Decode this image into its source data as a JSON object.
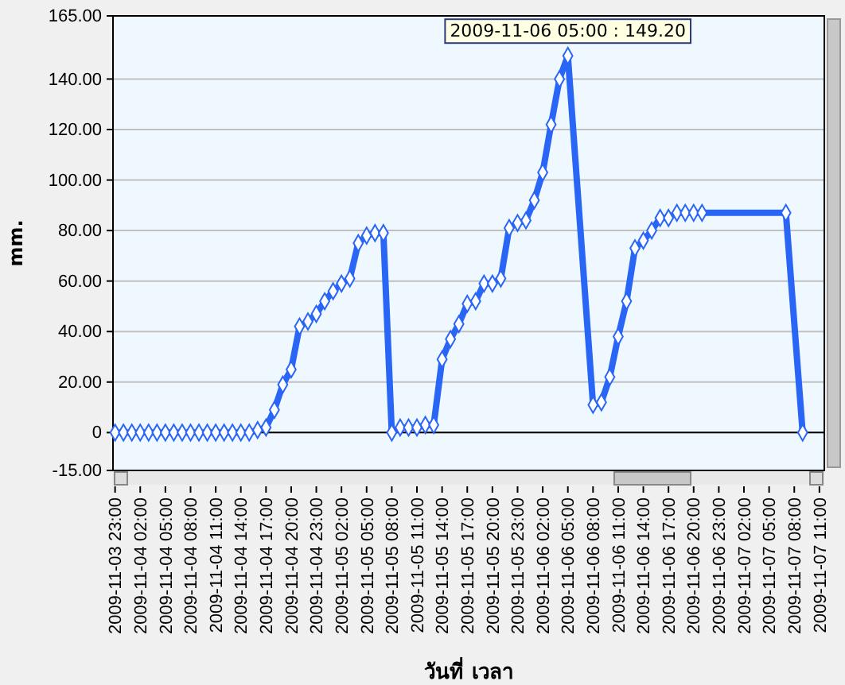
{
  "chart_data": {
    "type": "line",
    "xlabel": "วันที่ เวลา",
    "ylabel": "mm.",
    "marker": "diamond",
    "line_style": "solid",
    "grid": "y",
    "annotations": [
      {
        "text": "2009-11-06 05:00 : 149.20",
        "x": "2009-11-06T05:00",
        "y": 149.2
      }
    ],
    "xlim": [
      "2009-11-03T22:45",
      "2009-11-07T11:35"
    ],
    "ylim": [
      -15,
      165
    ],
    "yticks": [
      {
        "value": -15,
        "label": "-15.00"
      },
      0,
      {
        "value": 20,
        "label": "20.00"
      },
      {
        "value": 40,
        "label": "40.00"
      },
      {
        "value": 60,
        "label": "60.00"
      },
      {
        "value": 80,
        "label": "80.00"
      },
      {
        "value": 100,
        "label": "100.00"
      },
      {
        "value": 120,
        "label": "120.00"
      },
      {
        "value": 140,
        "label": "140.00"
      },
      {
        "value": 165,
        "label": "165.00"
      }
    ],
    "xticks": [
      {
        "value": "2009-11-03T23:00",
        "label": "2009-11-03 23:00"
      },
      {
        "value": "2009-11-04T02:00",
        "label": "2009-11-04 02:00"
      },
      {
        "value": "2009-11-04T05:00",
        "label": "2009-11-04 05:00"
      },
      {
        "value": "2009-11-04T08:00",
        "label": "2009-11-04 08:00"
      },
      {
        "value": "2009-11-04T11:00",
        "label": "2009-11-04 11:00"
      },
      {
        "value": "2009-11-04T14:00",
        "label": "2009-11-04 14:00"
      },
      {
        "value": "2009-11-04T17:00",
        "label": "2009-11-04 17:00"
      },
      {
        "value": "2009-11-04T20:00",
        "label": "2009-11-04 20:00"
      },
      {
        "value": "2009-11-04T23:00",
        "label": "2009-11-04 23:00"
      },
      {
        "value": "2009-11-05T02:00",
        "label": "2009-11-05 02:00"
      },
      {
        "value": "2009-11-05T05:00",
        "label": "2009-11-05 05:00"
      },
      {
        "value": "2009-11-05T08:00",
        "label": "2009-11-05 08:00"
      },
      {
        "value": "2009-11-05T11:00",
        "label": "2009-11-05 11:00"
      },
      {
        "value": "2009-11-05T14:00",
        "label": "2009-11-05 14:00"
      },
      {
        "value": "2009-11-05T17:00",
        "label": "2009-11-05 17:00"
      },
      {
        "value": "2009-11-05T20:00",
        "label": "2009-11-05 20:00"
      },
      {
        "value": "2009-11-05T23:00",
        "label": "2009-11-05 23:00"
      },
      {
        "value": "2009-11-06T02:00",
        "label": "2009-11-06 02:00"
      },
      {
        "value": "2009-11-06T05:00",
        "label": "2009-11-06 05:00"
      },
      {
        "value": "2009-11-06T08:00",
        "label": "2009-11-06 08:00"
      },
      {
        "value": "2009-11-06T11:00",
        "label": "2009-11-06 11:00"
      },
      {
        "value": "2009-11-06T14:00",
        "label": "2009-11-06 14:00"
      },
      {
        "value": "2009-11-06T17:00",
        "label": "2009-11-06 17:00"
      },
      {
        "value": "2009-11-06T20:00",
        "label": "2009-11-06 20:00"
      },
      {
        "value": "2009-11-06T23:00",
        "label": "2009-11-06 23:00"
      },
      {
        "value": "2009-11-07T02:00",
        "label": "2009-11-07 02:00"
      },
      {
        "value": "2009-11-07T05:00",
        "label": "2009-11-07 05:00"
      },
      {
        "value": "2009-11-07T08:00",
        "label": "2009-11-07 08:00"
      },
      {
        "value": "2009-11-07T11:00",
        "label": "2009-11-07 11:00"
      }
    ],
    "ref_lines": [
      {
        "axis": "y",
        "value": 0,
        "color": "#000000"
      }
    ],
    "series": [
      {
        "color": "#2a66f6",
        "x": [
          "2009-11-03T23:00",
          "2009-11-04T00:00",
          "2009-11-04T01:00",
          "2009-11-04T02:00",
          "2009-11-04T03:00",
          "2009-11-04T04:00",
          "2009-11-04T05:00",
          "2009-11-04T06:00",
          "2009-11-04T07:00",
          "2009-11-04T08:00",
          "2009-11-04T09:00",
          "2009-11-04T10:00",
          "2009-11-04T11:00",
          "2009-11-04T12:00",
          "2009-11-04T13:00",
          "2009-11-04T14:00",
          "2009-11-04T15:00",
          "2009-11-04T16:00",
          "2009-11-04T17:00",
          "2009-11-04T18:00",
          "2009-11-04T19:00",
          "2009-11-04T20:00",
          "2009-11-04T21:00",
          "2009-11-04T22:00",
          "2009-11-04T23:00",
          "2009-11-05T00:00",
          "2009-11-05T01:00",
          "2009-11-05T02:00",
          "2009-11-05T03:00",
          "2009-11-05T04:00",
          "2009-11-05T05:00",
          "2009-11-05T06:00",
          "2009-11-05T07:00",
          "2009-11-05T08:00",
          "2009-11-05T09:00",
          "2009-11-05T10:00",
          "2009-11-05T11:00",
          "2009-11-05T12:00",
          "2009-11-05T13:00",
          "2009-11-05T14:00",
          "2009-11-05T15:00",
          "2009-11-05T16:00",
          "2009-11-05T17:00",
          "2009-11-05T18:00",
          "2009-11-05T19:00",
          "2009-11-05T20:00",
          "2009-11-05T21:00",
          "2009-11-05T22:00",
          "2009-11-05T23:00",
          "2009-11-06T00:00",
          "2009-11-06T01:00",
          "2009-11-06T02:00",
          "2009-11-06T03:00",
          "2009-11-06T04:00",
          "2009-11-06T05:00",
          "2009-11-06T08:00",
          "2009-11-06T09:00",
          "2009-11-06T10:00",
          "2009-11-06T11:00",
          "2009-11-06T12:00",
          "2009-11-06T13:00",
          "2009-11-06T14:00",
          "2009-11-06T15:00",
          "2009-11-06T16:00",
          "2009-11-06T17:00",
          "2009-11-06T18:00",
          "2009-11-06T19:00",
          "2009-11-06T20:00",
          "2009-11-06T21:00",
          "2009-11-07T07:00",
          "2009-11-07T09:00"
        ],
        "values": [
          0,
          0,
          0,
          0,
          0,
          0,
          0,
          0,
          0,
          0,
          0,
          0,
          0,
          0,
          0,
          0,
          0,
          1,
          2,
          9,
          19,
          25,
          42,
          44,
          47,
          52,
          56,
          59,
          61,
          75,
          78,
          79,
          79,
          0,
          2,
          2,
          2,
          3,
          3,
          29,
          37,
          43,
          51,
          52,
          59,
          59,
          61,
          81,
          83,
          84,
          92,
          103,
          122,
          140,
          149.2,
          11,
          12,
          22,
          38,
          52,
          73,
          76,
          80,
          85,
          85,
          87,
          87,
          87,
          87,
          87,
          0
        ]
      }
    ]
  }
}
